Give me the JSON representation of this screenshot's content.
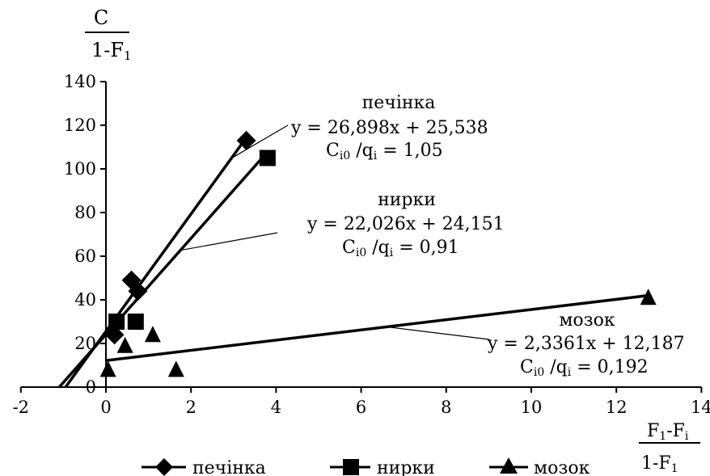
{
  "chart_data": {
    "type": "scatter",
    "title": "",
    "ylabel": {
      "numerator": "C",
      "denominator_main": "1-F",
      "denominator_sub": "1"
    },
    "xlabel": {
      "num_main1": "F",
      "num_sub1": "1",
      "num_mid": "-F",
      "num_sub2": "i",
      "den_main": "1-F",
      "den_sub": "1"
    },
    "xlim": [
      -2,
      14
    ],
    "ylim": [
      0,
      140
    ],
    "xticks": [
      -2,
      0,
      2,
      4,
      6,
      8,
      10,
      12,
      14
    ],
    "yticks": [
      0,
      20,
      40,
      60,
      80,
      100,
      120,
      140
    ],
    "xtick_labels": [
      "-2",
      "0",
      "2",
      "4",
      "6",
      "8",
      "10",
      "12",
      "14"
    ],
    "ytick_labels": [
      "0",
      "20",
      "40",
      "60",
      "80",
      "100",
      "120",
      "140"
    ],
    "legend_position": "bottom",
    "series": [
      {
        "name": "печінка",
        "marker": "diamond",
        "points": [
          [
            0.2,
            24
          ],
          [
            0.6,
            49
          ],
          [
            0.75,
            44
          ],
          [
            3.3,
            113
          ]
        ],
        "trendline": {
          "slope": 26.898,
          "intercept": 25.538,
          "x_from": -0.95,
          "x_to": 3.2
        },
        "annotation": {
          "label": "печінка",
          "equation": "y = 26,898x + 25,538",
          "ratio_main": "C",
          "ratio_sub": "i0",
          "ratio_mid": " /q",
          "ratio_sub2": "i",
          "ratio_value": " = 1,05"
        }
      },
      {
        "name": "нирки",
        "marker": "square",
        "points": [
          [
            0.25,
            30
          ],
          [
            0.7,
            30
          ],
          [
            3.8,
            105
          ]
        ],
        "trendline": {
          "slope": 22.026,
          "intercept": 24.151,
          "x_from": -1.1,
          "x_to": 3.7
        },
        "annotation": {
          "label": "нирки",
          "equation": "y = 22,026x + 24,151",
          "ratio_main": "C",
          "ratio_sub": "i0",
          "ratio_mid": " /q",
          "ratio_sub2": "i",
          "ratio_value": " = 0,91"
        }
      },
      {
        "name": "мозок",
        "marker": "triangle",
        "points": [
          [
            0.05,
            8
          ],
          [
            0.45,
            19
          ],
          [
            1.1,
            24
          ],
          [
            1.65,
            8
          ],
          [
            12.75,
            41
          ]
        ],
        "trendline": {
          "slope": 2.3361,
          "intercept": 12.187,
          "x_from": 0,
          "x_to": 12.75
        },
        "annotation": {
          "label": "мозок",
          "equation": "y = 2,3361x + 12,187",
          "ratio_main": "C",
          "ratio_sub": "i0",
          "ratio_mid": " /q",
          "ratio_sub2": "i",
          "ratio_value": " = 0,192"
        }
      }
    ]
  }
}
